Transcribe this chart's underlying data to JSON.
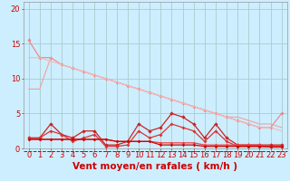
{
  "bg_color": "#cceeff",
  "grid_color": "#aacccc",
  "xlabel": "Vent moyen/en rafales ( km/h )",
  "xlabel_color": "#cc0000",
  "tick_color": "#cc0000",
  "ylim": [
    0,
    21
  ],
  "xlim": [
    -0.5,
    23.5
  ],
  "yticks": [
    0,
    5,
    10,
    15,
    20
  ],
  "xticks": [
    0,
    1,
    2,
    3,
    4,
    5,
    6,
    7,
    8,
    9,
    10,
    11,
    12,
    13,
    14,
    15,
    16,
    17,
    18,
    19,
    20,
    21,
    22,
    23
  ],
  "smooth1_y": [
    15.5,
    13.0,
    13.0,
    12.0,
    11.5,
    11.0,
    10.5,
    10.0,
    9.5,
    9.0,
    8.5,
    8.0,
    7.5,
    7.0,
    6.5,
    6.0,
    5.5,
    5.0,
    4.5,
    4.0,
    3.5,
    3.0,
    3.0,
    5.0
  ],
  "smooth1_color": "#f08080",
  "smooth2_y": [
    8.5,
    8.5,
    13.0,
    12.0,
    11.5,
    11.0,
    10.5,
    10.0,
    9.5,
    9.0,
    8.5,
    8.0,
    7.5,
    7.0,
    6.5,
    6.0,
    5.5,
    5.0,
    4.5,
    4.5,
    4.0,
    3.5,
    3.5,
    3.0
  ],
  "smooth2_color": "#f4a0a0",
  "smooth3_y": [
    13.0,
    13.0,
    12.5,
    12.0,
    11.5,
    11.0,
    10.5,
    10.0,
    9.5,
    9.0,
    8.5,
    8.0,
    7.5,
    7.0,
    6.5,
    6.0,
    5.5,
    5.0,
    4.5,
    4.0,
    3.5,
    3.0,
    3.0,
    2.5
  ],
  "smooth3_color": "#f8b8b8",
  "spiky1_y": [
    1.5,
    1.5,
    3.5,
    2.0,
    1.5,
    2.5,
    2.5,
    0.5,
    0.5,
    1.0,
    3.5,
    2.5,
    3.0,
    5.0,
    4.5,
    3.5,
    1.5,
    3.5,
    1.5,
    0.5,
    0.5,
    0.5,
    0.5,
    0.5
  ],
  "spiky1_color": "#cc2222",
  "spiky2_y": [
    1.5,
    1.5,
    2.5,
    2.0,
    1.0,
    1.5,
    2.0,
    0.3,
    0.3,
    0.5,
    2.5,
    1.5,
    2.0,
    3.5,
    3.0,
    2.5,
    1.0,
    2.5,
    1.0,
    0.3,
    0.3,
    0.3,
    0.3,
    0.3
  ],
  "spiky2_color": "#dd3333",
  "flat1_y": [
    1.3,
    1.3,
    1.3,
    1.3,
    1.3,
    1.3,
    1.3,
    1.3,
    1.0,
    1.0,
    1.0,
    1.0,
    0.8,
    0.8,
    0.8,
    0.8,
    0.5,
    0.5,
    0.5,
    0.5,
    0.5,
    0.5,
    0.3,
    0.3
  ],
  "flat1_color": "#ee4444",
  "flat2_y": [
    1.3,
    1.3,
    1.3,
    1.3,
    1.3,
    1.3,
    1.3,
    1.3,
    1.0,
    1.0,
    1.0,
    1.0,
    0.5,
    0.5,
    0.5,
    0.5,
    0.3,
    0.3,
    0.3,
    0.3,
    0.3,
    0.3,
    0.2,
    0.2
  ],
  "flat2_color": "#cc0000",
  "dashed_y": -0.35,
  "dashed_color": "#cc0000"
}
